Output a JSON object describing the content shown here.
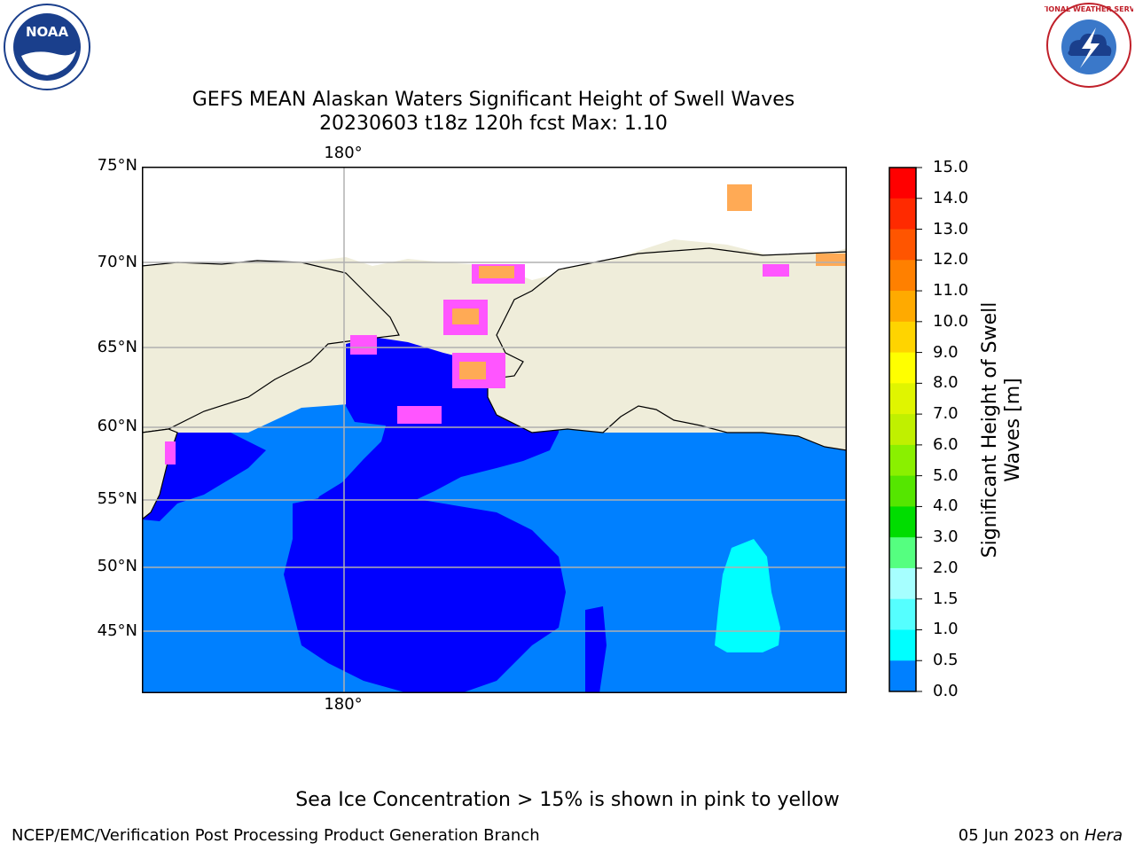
{
  "title": {
    "line1": "GEFS MEAN Alaskan Waters Significant Height of Swell Waves",
    "line2": "20230603 t18z 120h fcst   Max: 1.10"
  },
  "logos": {
    "left": "noaa-logo",
    "left_text": "NOAA",
    "right": "nws-logo",
    "right_text": "NATIONAL WEATHER SERVICE"
  },
  "map": {
    "lat_labels": [
      "75°N",
      "70°N",
      "65°N",
      "60°N",
      "55°N",
      "50°N",
      "45°N"
    ],
    "lon_label_top": "180°",
    "lon_label_bottom": "180°",
    "colors": {
      "land": "#efedda",
      "ocean_low": "#0000ff",
      "ocean_mid": "#0080ff",
      "swell_cyan": "#00ffff",
      "ice_pink": "#ff55ff",
      "ice_orange": "#ffaa55",
      "grid": "#b0b0b0"
    }
  },
  "colorbar": {
    "label": "Significant Height of Swell Waves [m]",
    "ticks": [
      "15.0",
      "14.0",
      "13.0",
      "12.0",
      "11.0",
      "10.0",
      "9.0",
      "8.0",
      "7.0",
      "6.0",
      "5.0",
      "4.0",
      "3.0",
      "2.0",
      "1.5",
      "1.0",
      "0.5",
      "0.0"
    ],
    "colors": [
      "#ff0000",
      "#ff2a00",
      "#ff5500",
      "#ff8000",
      "#ffaa00",
      "#ffd400",
      "#ffff00",
      "#e0f500",
      "#c0f000",
      "#8af000",
      "#55e600",
      "#00dd00",
      "#55ff80",
      "#a6ffff",
      "#55ffff",
      "#00ffff",
      "#0080ff",
      "#0000ff"
    ]
  },
  "note": "Sea Ice Concentration > 15% is shown in pink to yellow",
  "footer": {
    "left": "NCEP/EMC/Verification Post Processing Product Generation Branch",
    "right_date": "05 Jun 2023 on ",
    "right_host": "Hera"
  }
}
